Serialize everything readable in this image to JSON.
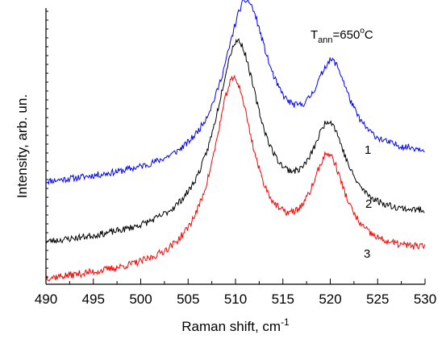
{
  "chart_data": {
    "type": "line",
    "title": "",
    "xlabel": "Raman shift, cm",
    "xlabel_superscript": "-1",
    "ylabel": "Intensity, arb. un.",
    "xlim": [
      490,
      530
    ],
    "x_ticks": [
      490,
      495,
      500,
      505,
      510,
      515,
      520,
      525,
      530
    ],
    "y_ticks_shown": false,
    "grid": false,
    "annotation": {
      "base": "T",
      "subscript": "ann",
      "value": "=650",
      "degree": "o",
      "unit": "C"
    },
    "series": [
      {
        "label": "1",
        "color": "#0000ff",
        "baseline": 0.36,
        "peaks": [
          {
            "center": 511.1,
            "height": 0.595,
            "width": 2.9
          },
          {
            "center": 520.2,
            "height": 0.32,
            "width": 2.3
          }
        ],
        "noise": 0.012,
        "seed": 11
      },
      {
        "label": "2",
        "color": "#000000",
        "baseline": 0.14,
        "peaks": [
          {
            "center": 510.2,
            "height": 0.675,
            "width": 2.8
          },
          {
            "center": 519.9,
            "height": 0.325,
            "width": 2.2
          }
        ],
        "noise": 0.012,
        "seed": 23
      },
      {
        "label": "3",
        "color": "#ff0000",
        "baseline": 0.01,
        "peaks": [
          {
            "center": 509.8,
            "height": 0.67,
            "width": 2.6
          },
          {
            "center": 519.8,
            "height": 0.345,
            "width": 2.2
          }
        ],
        "noise": 0.013,
        "seed": 37
      }
    ]
  }
}
